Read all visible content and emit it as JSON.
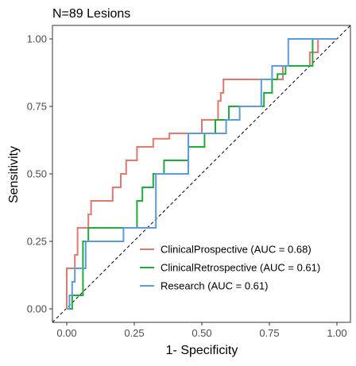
{
  "chart_data": {
    "type": "line",
    "title": "N=89 Lesions",
    "xlabel": "1- Specificity",
    "ylabel": "Sensitivity",
    "xlim": [
      0,
      1
    ],
    "ylim": [
      0,
      1
    ],
    "x_ticks": [
      "0.00",
      "0.25",
      "0.50",
      "0.75",
      "1.00"
    ],
    "y_ticks": [
      "0.00",
      "0.25",
      "0.50",
      "0.75",
      "1.00"
    ],
    "grid": false,
    "legend_position": "bottom-right",
    "reference_line": {
      "style": "dashed",
      "from": [
        0,
        0
      ],
      "to": [
        1,
        1
      ]
    },
    "series": [
      {
        "name": "ClinicalProspective (AUC = 0.68)",
        "color": "#E8766D",
        "points": [
          [
            0,
            0
          ],
          [
            0,
            0.15
          ],
          [
            0.03,
            0.15
          ],
          [
            0.03,
            0.2
          ],
          [
            0.04,
            0.2
          ],
          [
            0.04,
            0.3
          ],
          [
            0.08,
            0.3
          ],
          [
            0.08,
            0.35
          ],
          [
            0.09,
            0.35
          ],
          [
            0.09,
            0.4
          ],
          [
            0.17,
            0.4
          ],
          [
            0.17,
            0.45
          ],
          [
            0.2,
            0.45
          ],
          [
            0.2,
            0.5
          ],
          [
            0.22,
            0.5
          ],
          [
            0.22,
            0.55
          ],
          [
            0.26,
            0.55
          ],
          [
            0.26,
            0.6
          ],
          [
            0.32,
            0.6
          ],
          [
            0.32,
            0.63
          ],
          [
            0.38,
            0.63
          ],
          [
            0.38,
            0.65
          ],
          [
            0.5,
            0.65
          ],
          [
            0.5,
            0.7
          ],
          [
            0.56,
            0.7
          ],
          [
            0.56,
            0.77
          ],
          [
            0.57,
            0.77
          ],
          [
            0.57,
            0.8
          ],
          [
            0.58,
            0.8
          ],
          [
            0.58,
            0.85
          ],
          [
            0.8,
            0.85
          ],
          [
            0.8,
            0.9
          ],
          [
            0.9,
            0.9
          ],
          [
            0.9,
            0.95
          ],
          [
            0.93,
            0.95
          ],
          [
            0.93,
            1
          ],
          [
            1,
            1
          ]
        ]
      },
      {
        "name": "ClinicalRetrospective (AUC = 0.61)",
        "color": "#1BAE3B",
        "points": [
          [
            0,
            0
          ],
          [
            0.02,
            0
          ],
          [
            0.02,
            0.05
          ],
          [
            0.06,
            0.05
          ],
          [
            0.06,
            0.25
          ],
          [
            0.08,
            0.25
          ],
          [
            0.08,
            0.3
          ],
          [
            0.26,
            0.3
          ],
          [
            0.26,
            0.4
          ],
          [
            0.28,
            0.4
          ],
          [
            0.28,
            0.45
          ],
          [
            0.32,
            0.45
          ],
          [
            0.32,
            0.5
          ],
          [
            0.36,
            0.5
          ],
          [
            0.36,
            0.55
          ],
          [
            0.45,
            0.55
          ],
          [
            0.45,
            0.6
          ],
          [
            0.51,
            0.6
          ],
          [
            0.51,
            0.65
          ],
          [
            0.55,
            0.65
          ],
          [
            0.55,
            0.7
          ],
          [
            0.6,
            0.7
          ],
          [
            0.6,
            0.75
          ],
          [
            0.73,
            0.75
          ],
          [
            0.73,
            0.8
          ],
          [
            0.76,
            0.8
          ],
          [
            0.76,
            0.85
          ],
          [
            0.78,
            0.85
          ],
          [
            0.78,
            0.87
          ],
          [
            0.81,
            0.87
          ],
          [
            0.81,
            0.9
          ],
          [
            0.91,
            0.9
          ],
          [
            0.91,
            1
          ],
          [
            1,
            1
          ]
        ]
      },
      {
        "name": "Research (AUC = 0.61)",
        "color": "#5B9BE0",
        "points": [
          [
            0,
            0
          ],
          [
            0.01,
            0
          ],
          [
            0.01,
            0.05
          ],
          [
            0.02,
            0.05
          ],
          [
            0.02,
            0.1
          ],
          [
            0.03,
            0.1
          ],
          [
            0.03,
            0.15
          ],
          [
            0.07,
            0.15
          ],
          [
            0.07,
            0.25
          ],
          [
            0.21,
            0.25
          ],
          [
            0.21,
            0.3
          ],
          [
            0.33,
            0.3
          ],
          [
            0.33,
            0.5
          ],
          [
            0.45,
            0.5
          ],
          [
            0.45,
            0.65
          ],
          [
            0.59,
            0.65
          ],
          [
            0.59,
            0.7
          ],
          [
            0.64,
            0.7
          ],
          [
            0.64,
            0.75
          ],
          [
            0.72,
            0.75
          ],
          [
            0.72,
            0.85
          ],
          [
            0.76,
            0.85
          ],
          [
            0.76,
            0.9
          ],
          [
            0.82,
            0.9
          ],
          [
            0.82,
            1
          ],
          [
            1,
            1
          ]
        ]
      }
    ]
  }
}
